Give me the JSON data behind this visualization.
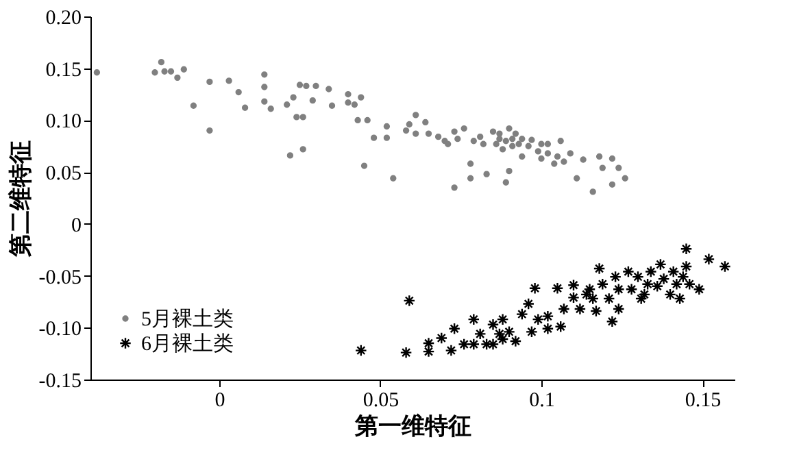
{
  "chart_data": {
    "type": "scatter",
    "xlabel": "第一维特征",
    "ylabel": "第二维特征",
    "xlim": [
      -0.04,
      0.16
    ],
    "xticks": [
      {
        "value": 0,
        "label": "0"
      },
      0.05,
      {
        "value": 0.1,
        "label": "0.1"
      },
      0.15
    ],
    "ylim": [
      -0.15,
      0.2
    ],
    "yticks": [
      {
        "value": -0.15,
        "label": "-0.15"
      },
      {
        "value": -0.1,
        "label": "-0.10"
      },
      {
        "value": -0.05,
        "label": "-0.05"
      },
      {
        "value": 0,
        "label": "0"
      },
      {
        "value": 0.05,
        "label": "0.05"
      },
      {
        "value": 0.1,
        "label": "0.10"
      },
      {
        "value": 0.15,
        "label": "0.15"
      },
      {
        "value": 0.2,
        "label": "0.20"
      }
    ],
    "grid": false,
    "legend": "bottom left",
    "series": [
      {
        "name": "5月裸土类",
        "color": "#808080",
        "marker": "circle",
        "x": [
          -0.038,
          -0.02,
          -0.018,
          -0.017,
          -0.015,
          -0.013,
          -0.011,
          -0.008,
          -0.003,
          -0.003,
          0.003,
          0.006,
          0.008,
          0.014,
          0.014,
          0.014,
          0.016,
          0.021,
          0.023,
          0.022,
          0.024,
          0.026,
          0.025,
          0.026,
          0.027,
          0.03,
          0.029,
          0.034,
          0.035,
          0.04,
          0.04,
          0.044,
          0.042,
          0.043,
          0.046,
          0.045,
          0.048,
          0.052,
          0.052,
          0.054,
          0.058,
          0.059,
          0.061,
          0.061,
          0.065,
          0.064,
          0.068,
          0.07,
          0.073,
          0.073,
          0.076,
          0.078,
          0.078,
          0.081,
          0.082,
          0.083,
          0.085,
          0.087,
          0.088,
          0.089,
          0.09,
          0.09,
          0.091,
          0.093,
          0.094,
          0.096,
          0.097,
          0.099,
          0.1,
          0.102,
          0.104,
          0.106,
          0.107,
          0.109,
          0.111,
          0.113,
          0.116,
          0.118,
          0.119,
          0.122,
          0.122,
          0.124,
          0.126,
          0.079,
          0.086,
          0.087,
          0.089,
          0.091,
          0.092,
          0.094,
          0.071,
          0.074,
          0.1,
          0.102,
          0.105
        ],
        "values": [
          0.146,
          0.146,
          0.156,
          0.147,
          0.147,
          0.141,
          0.149,
          0.114,
          0.137,
          0.09,
          0.138,
          0.127,
          0.112,
          0.144,
          0.132,
          0.118,
          0.111,
          0.115,
          0.122,
          0.066,
          0.103,
          0.103,
          0.134,
          0.072,
          0.133,
          0.133,
          0.119,
          0.13,
          0.114,
          0.125,
          0.117,
          0.122,
          0.115,
          0.1,
          0.1,
          0.056,
          0.083,
          0.094,
          0.083,
          0.044,
          0.09,
          0.096,
          0.105,
          0.087,
          0.087,
          0.098,
          0.084,
          0.08,
          0.089,
          0.035,
          0.092,
          0.058,
          0.044,
          0.084,
          0.077,
          0.048,
          0.089,
          0.082,
          0.072,
          0.04,
          0.092,
          0.051,
          0.082,
          0.077,
          0.065,
          0.075,
          0.081,
          0.07,
          0.063,
          0.077,
          0.058,
          0.08,
          0.06,
          0.068,
          0.044,
          0.062,
          0.031,
          0.065,
          0.054,
          0.063,
          0.038,
          0.054,
          0.044,
          0.08,
          0.077,
          0.087,
          0.08,
          0.075,
          0.087,
          0.082,
          0.077,
          0.082,
          0.077,
          0.068,
          0.065
        ]
      },
      {
        "name": "6月裸土类",
        "color": "#000000",
        "marker": "cross",
        "x": [
          0.044,
          0.059,
          0.058,
          0.065,
          0.065,
          0.069,
          0.072,
          0.073,
          0.076,
          0.079,
          0.081,
          0.083,
          0.085,
          0.087,
          0.088,
          0.09,
          0.092,
          0.094,
          0.096,
          0.097,
          0.098,
          0.099,
          0.102,
          0.105,
          0.106,
          0.107,
          0.11,
          0.11,
          0.112,
          0.114,
          0.116,
          0.117,
          0.118,
          0.119,
          0.121,
          0.122,
          0.123,
          0.124,
          0.124,
          0.127,
          0.128,
          0.13,
          0.131,
          0.133,
          0.134,
          0.136,
          0.137,
          0.138,
          0.14,
          0.141,
          0.142,
          0.144,
          0.145,
          0.145,
          0.146,
          0.149,
          0.152,
          0.157,
          0.079,
          0.085,
          0.088,
          0.102,
          0.115,
          0.132,
          0.143
        ],
        "values": [
          -0.122,
          -0.074,
          -0.124,
          -0.115,
          -0.123,
          -0.11,
          -0.122,
          -0.101,
          -0.116,
          -0.092,
          -0.106,
          -0.116,
          -0.097,
          -0.106,
          -0.092,
          -0.104,
          -0.113,
          -0.087,
          -0.077,
          -0.104,
          -0.062,
          -0.092,
          -0.089,
          -0.062,
          -0.099,
          -0.082,
          -0.059,
          -0.071,
          -0.082,
          -0.068,
          -0.072,
          -0.084,
          -0.043,
          -0.058,
          -0.072,
          -0.094,
          -0.051,
          -0.063,
          -0.082,
          -0.046,
          -0.063,
          -0.051,
          -0.072,
          -0.058,
          -0.046,
          -0.06,
          -0.039,
          -0.053,
          -0.068,
          -0.046,
          -0.058,
          -0.051,
          -0.024,
          -0.041,
          -0.058,
          -0.063,
          -0.034,
          -0.041,
          -0.116,
          -0.116,
          -0.111,
          -0.101,
          -0.063,
          -0.068,
          -0.072
        ]
      }
    ]
  }
}
